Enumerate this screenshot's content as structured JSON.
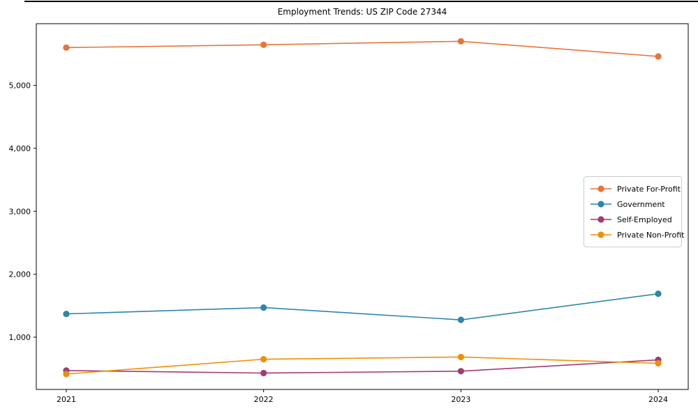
{
  "chart_data": {
    "type": "line",
    "title": "Employment Trends: US ZIP Code 27344",
    "x": [
      "2021",
      "2022",
      "2023",
      "2024"
    ],
    "series": [
      {
        "name": "Private For-Profit",
        "color": "#E8743B",
        "values": [
          5600,
          5645,
          5700,
          5460
        ]
      },
      {
        "name": "Government",
        "color": "#2E86AB",
        "values": [
          1370,
          1470,
          1275,
          1690
        ]
      },
      {
        "name": "Self-Employed",
        "color": "#A23B72",
        "values": [
          470,
          430,
          460,
          640
        ]
      },
      {
        "name": "Private Non-Profit",
        "color": "#F18F01",
        "values": [
          415,
          650,
          685,
          585
        ]
      }
    ],
    "yticks": [
      1000,
      2000,
      3000,
      4000,
      5000
    ],
    "ytick_labels": [
      "1,000",
      "2,000",
      "3,000",
      "4,000",
      "5,000"
    ],
    "ylim": [
      170,
      5980
    ],
    "grid": false,
    "legend_position": "center-right",
    "axis_color": "#000000",
    "background_color": "#ffffff"
  }
}
